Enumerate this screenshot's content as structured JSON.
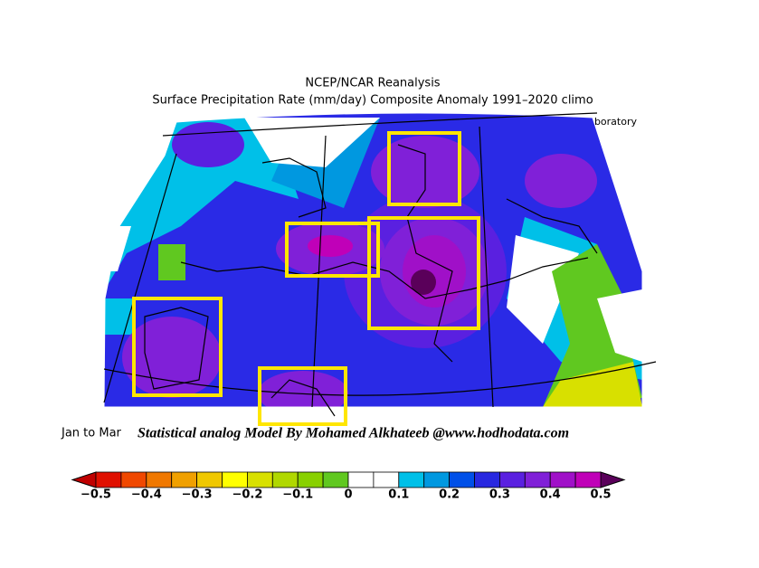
{
  "header": {
    "title": "NCEP/NCAR Reanalysis",
    "subtitle": "Surface Precipitation Rate (mm/day) Composite Anomaly 1991–2020 climo",
    "credit": "NOAA Physical Sciences Laboratory"
  },
  "period": "Jan to Mar",
  "watermark": "Statistical analog Model By Mohamed Alkhateeb @www.hodhodata.com",
  "colorbar": {
    "labels": [
      "−0.5",
      "−0.4",
      "−0.3",
      "−0.2",
      "−0.1",
      "0",
      "0.1",
      "0.2",
      "0.3",
      "0.4",
      "0.5"
    ],
    "low_end_color": "#c00000",
    "high_end_color": "#5a005a",
    "colors": [
      "#e01000",
      "#f04800",
      "#f07800",
      "#f0a000",
      "#f0c800",
      "#ffff00",
      "#d8e000",
      "#b0d800",
      "#88d000",
      "#60c820",
      "#ffffff",
      "#ffffff",
      "#00c0e8",
      "#0098e0",
      "#0050e8",
      "#2828e0",
      "#5a20e0",
      "#8020d8",
      "#a010c8",
      "#c000b8"
    ]
  }
}
